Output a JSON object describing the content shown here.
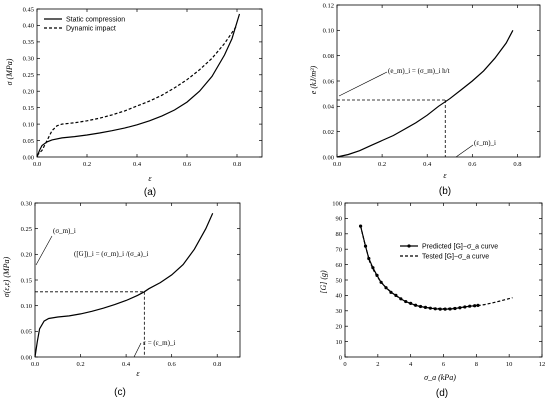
{
  "chart_data": [
    {
      "id": "a",
      "type": "line",
      "panel_label": "(a)",
      "xlabel": "ε",
      "ylabel": "σ (MPa)",
      "xlim": [
        0,
        0.9
      ],
      "ylim": [
        0,
        0.45
      ],
      "xticks": [
        0.0,
        0.2,
        0.4,
        0.6,
        0.8
      ],
      "xtick_labels": [
        "0.0",
        "0.2",
        "0.4",
        "0.6",
        "0.8"
      ],
      "yticks": [
        0.0,
        0.05,
        0.1,
        0.15,
        0.2,
        0.25,
        0.3,
        0.35,
        0.4,
        0.45
      ],
      "ytick_labels": [
        "0.00",
        "0.05",
        "0.10",
        "0.15",
        "0.20",
        "0.25",
        "0.30",
        "0.35",
        "0.40",
        "0.45"
      ],
      "legend_position": "top-left",
      "series": [
        {
          "name": "Static compression",
          "style": "solid",
          "points": [
            [
              0,
              0
            ],
            [
              0.01,
              0.02
            ],
            [
              0.02,
              0.035
            ],
            [
              0.04,
              0.046
            ],
            [
              0.06,
              0.052
            ],
            [
              0.1,
              0.058
            ],
            [
              0.15,
              0.062
            ],
            [
              0.2,
              0.067
            ],
            [
              0.25,
              0.073
            ],
            [
              0.3,
              0.08
            ],
            [
              0.35,
              0.088
            ],
            [
              0.4,
              0.098
            ],
            [
              0.45,
              0.11
            ],
            [
              0.5,
              0.125
            ],
            [
              0.55,
              0.143
            ],
            [
              0.6,
              0.167
            ],
            [
              0.65,
              0.2
            ],
            [
              0.7,
              0.245
            ],
            [
              0.75,
              0.31
            ],
            [
              0.78,
              0.36
            ],
            [
              0.81,
              0.435
            ]
          ]
        },
        {
          "name": "Dynamic impact",
          "style": "dashed",
          "points": [
            [
              0,
              0.005
            ],
            [
              0.02,
              0.02
            ],
            [
              0.04,
              0.05
            ],
            [
              0.06,
              0.08
            ],
            [
              0.08,
              0.095
            ],
            [
              0.1,
              0.1
            ],
            [
              0.15,
              0.104
            ],
            [
              0.2,
              0.11
            ],
            [
              0.25,
              0.118
            ],
            [
              0.3,
              0.128
            ],
            [
              0.35,
              0.14
            ],
            [
              0.4,
              0.155
            ],
            [
              0.45,
              0.17
            ],
            [
              0.5,
              0.188
            ],
            [
              0.55,
              0.21
            ],
            [
              0.6,
              0.235
            ],
            [
              0.65,
              0.265
            ],
            [
              0.7,
              0.3
            ],
            [
              0.75,
              0.345
            ],
            [
              0.8,
              0.4
            ]
          ]
        }
      ]
    },
    {
      "id": "b",
      "type": "line",
      "panel_label": "(b)",
      "xlabel": "ε",
      "ylabel": "e (kJ/m³)",
      "xlim": [
        0,
        0.9
      ],
      "ylim": [
        0,
        0.12
      ],
      "xticks": [
        0.0,
        0.2,
        0.4,
        0.6,
        0.8
      ],
      "xtick_labels": [
        "0.0",
        "0.2",
        "0.4",
        "0.6",
        "0.8"
      ],
      "yticks": [
        0.0,
        0.02,
        0.04,
        0.06,
        0.08,
        0.1,
        0.12
      ],
      "ytick_labels": [
        "0.00",
        "0.02",
        "0.04",
        "0.06",
        "0.08",
        "0.10",
        "0.12"
      ],
      "series": [
        {
          "name": "",
          "style": "solid",
          "points": [
            [
              0,
              0
            ],
            [
              0.05,
              0.002
            ],
            [
              0.1,
              0.005
            ],
            [
              0.15,
              0.009
            ],
            [
              0.2,
              0.013
            ],
            [
              0.25,
              0.017
            ],
            [
              0.3,
              0.022
            ],
            [
              0.35,
              0.027
            ],
            [
              0.4,
              0.033
            ],
            [
              0.45,
              0.04
            ],
            [
              0.5,
              0.046
            ],
            [
              0.55,
              0.053
            ],
            [
              0.6,
              0.06
            ],
            [
              0.65,
              0.068
            ],
            [
              0.7,
              0.078
            ],
            [
              0.75,
              0.09
            ],
            [
              0.78,
              0.1
            ]
          ]
        }
      ],
      "guide": {
        "x": 0.48,
        "y": 0.045
      },
      "annotations": {
        "energy": "(e_m)_i = (σ_m)_i h/t",
        "strain": "(ε_m)_i"
      }
    },
    {
      "id": "c",
      "type": "line",
      "panel_label": "(c)",
      "xlabel": "ε",
      "ylabel": "σ(ε,ε̇) (MPa)",
      "xlim": [
        0,
        0.9
      ],
      "ylim": [
        0,
        0.3
      ],
      "xticks": [
        0.0,
        0.2,
        0.4,
        0.6,
        0.8
      ],
      "xtick_labels": [
        "0.0",
        "0.2",
        "0.4",
        "0.6",
        "0.8"
      ],
      "yticks": [
        0.0,
        0.05,
        0.1,
        0.15,
        0.2,
        0.25,
        0.3
      ],
      "ytick_labels": [
        "0.00",
        "0.05",
        "0.10",
        "0.15",
        "0.20",
        "0.25",
        "0.30"
      ],
      "series": [
        {
          "name": "",
          "style": "solid",
          "points": [
            [
              0,
              0
            ],
            [
              0.01,
              0.03
            ],
            [
              0.02,
              0.055
            ],
            [
              0.04,
              0.07
            ],
            [
              0.06,
              0.075
            ],
            [
              0.1,
              0.078
            ],
            [
              0.15,
              0.08
            ],
            [
              0.2,
              0.084
            ],
            [
              0.25,
              0.089
            ],
            [
              0.3,
              0.095
            ],
            [
              0.35,
              0.102
            ],
            [
              0.4,
              0.11
            ],
            [
              0.45,
              0.12
            ],
            [
              0.48,
              0.127
            ],
            [
              0.5,
              0.133
            ],
            [
              0.55,
              0.145
            ],
            [
              0.6,
              0.16
            ],
            [
              0.65,
              0.18
            ],
            [
              0.7,
              0.21
            ],
            [
              0.75,
              0.25
            ],
            [
              0.78,
              0.28
            ]
          ]
        }
      ],
      "guide": {
        "x": 0.48,
        "y": 0.127
      },
      "annotations": {
        "sigma": "(σ_m)_i",
        "G": "([G])_i = (σ_m)_i /(σ_a)_i",
        "strain": "ε = (ε_m)_i"
      }
    },
    {
      "id": "d",
      "type": "line",
      "panel_label": "(d)",
      "xlabel": "σ_a (kPa)",
      "ylabel": "[G] (g)",
      "xlim": [
        0,
        12
      ],
      "ylim": [
        0,
        100
      ],
      "xticks": [
        0,
        2,
        4,
        6,
        8,
        10,
        12
      ],
      "xtick_labels": [
        "0",
        "2",
        "4",
        "6",
        "8",
        "10",
        "12"
      ],
      "yticks": [
        0,
        10,
        20,
        30,
        40,
        50,
        60,
        70,
        80,
        90,
        100
      ],
      "ytick_labels": [
        "0",
        "10",
        "20",
        "30",
        "40",
        "50",
        "60",
        "70",
        "80",
        "90",
        "100"
      ],
      "legend_position": "middle-right",
      "series": [
        {
          "name": "Predicted [G]−σ_a curve",
          "style": "solid-marker",
          "points": [
            [
              0.95,
              85
            ],
            [
              1.25,
              72
            ],
            [
              1.45,
              64
            ],
            [
              1.7,
              58
            ],
            [
              1.95,
              53
            ],
            [
              2.2,
              48.5
            ],
            [
              2.5,
              45
            ],
            [
              2.8,
              42
            ],
            [
              3.1,
              40
            ],
            [
              3.4,
              37.8
            ],
            [
              3.7,
              36
            ],
            [
              4.0,
              34.8
            ],
            [
              4.3,
              33.6
            ],
            [
              4.6,
              32.8
            ],
            [
              4.9,
              32.2
            ],
            [
              5.2,
              31.7
            ],
            [
              5.5,
              31.3
            ],
            [
              5.8,
              31.1
            ],
            [
              6.1,
              31.1
            ],
            [
              6.4,
              31.2
            ],
            [
              6.7,
              31.5
            ],
            [
              7.0,
              32
            ],
            [
              7.3,
              32.5
            ],
            [
              7.6,
              33
            ],
            [
              7.9,
              33.3
            ],
            [
              8.1,
              33.5
            ]
          ]
        },
        {
          "name": "Tested [G]−σ_a curve",
          "style": "dashed",
          "points": [
            [
              0.95,
              85
            ],
            [
              1.2,
              74
            ],
            [
              1.5,
              62
            ],
            [
              1.8,
              55
            ],
            [
              2.1,
              50
            ],
            [
              2.5,
              45
            ],
            [
              3.0,
              40.5
            ],
            [
              3.5,
              37
            ],
            [
              4.0,
              34.5
            ],
            [
              4.5,
              33
            ],
            [
              5.0,
              32
            ],
            [
              5.5,
              31.5
            ],
            [
              6.0,
              31.4
            ],
            [
              6.5,
              31.6
            ],
            [
              7.0,
              32
            ],
            [
              7.5,
              32.6
            ],
            [
              8.0,
              33.2
            ],
            [
              8.5,
              34
            ],
            [
              9.0,
              35.2
            ],
            [
              9.5,
              36.5
            ],
            [
              10.2,
              38.5
            ]
          ]
        }
      ]
    }
  ]
}
